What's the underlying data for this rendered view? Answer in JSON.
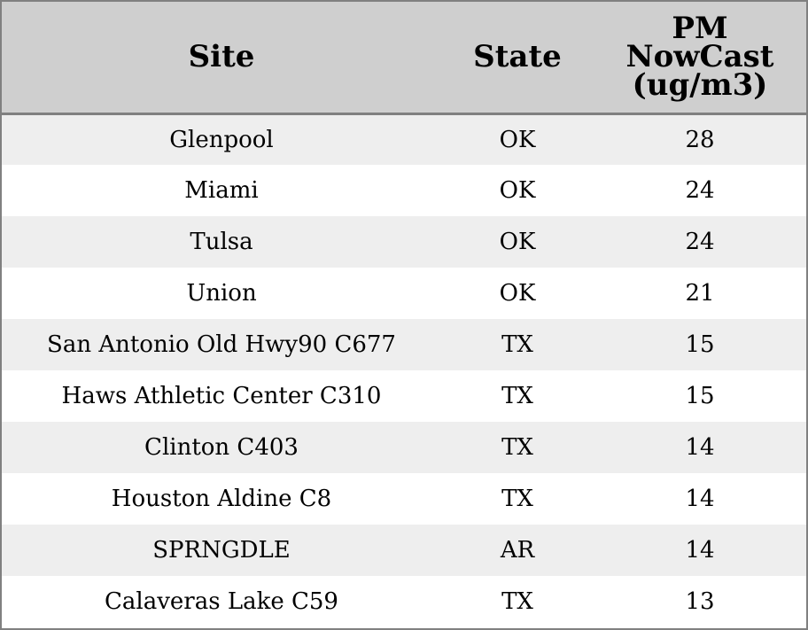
{
  "chart_data": {
    "type": "table",
    "columns": [
      "Site",
      "State",
      "PM NowCast (ug/m3)"
    ],
    "header_lines": {
      "pm": [
        "PM",
        "NowCast",
        "(ug/m3)"
      ]
    },
    "rows": [
      {
        "site": "Glenpool",
        "state": "OK",
        "pm": 28
      },
      {
        "site": "Miami",
        "state": "OK",
        "pm": 24
      },
      {
        "site": "Tulsa",
        "state": "OK",
        "pm": 24
      },
      {
        "site": "Union",
        "state": "OK",
        "pm": 21
      },
      {
        "site": "San Antonio Old Hwy90 C677",
        "state": "TX",
        "pm": 15
      },
      {
        "site": "Haws Athletic Center C310",
        "state": "TX",
        "pm": 15
      },
      {
        "site": "Clinton C403",
        "state": "TX",
        "pm": 14
      },
      {
        "site": "Houston Aldine C8",
        "state": "TX",
        "pm": 14
      },
      {
        "site": "SPRNGDLE",
        "state": "AR",
        "pm": 14
      },
      {
        "site": "Calaveras Lake C59",
        "state": "TX",
        "pm": 13
      }
    ],
    "colors": {
      "header_bg": "#cfcfcf",
      "row_stripe": "#eeeeee",
      "row_plain": "#ffffff",
      "border": "#808080"
    }
  }
}
